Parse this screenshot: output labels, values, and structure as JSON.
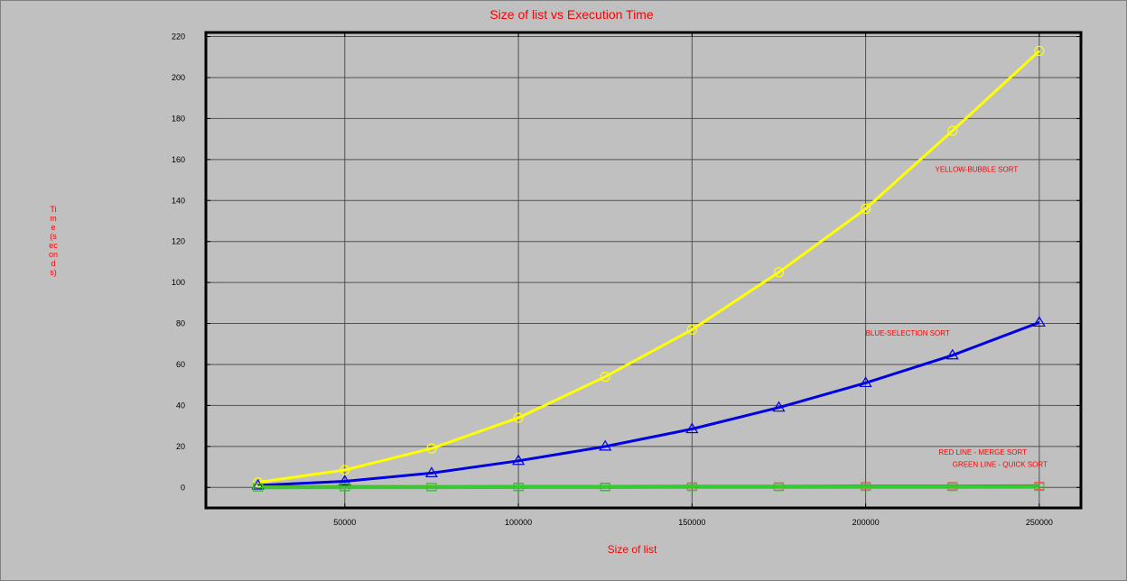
{
  "chart_data": {
    "type": "line",
    "title": "Size of list vs Execution Time",
    "xlabel": "Size of list",
    "ylabel": "Time(seconds)",
    "x": [
      25000,
      50000,
      75000,
      100000,
      125000,
      150000,
      175000,
      200000,
      225000,
      250000
    ],
    "xlim": [
      10000,
      262000
    ],
    "ylim": [
      -10,
      222
    ],
    "xticks": [
      50000,
      100000,
      150000,
      200000,
      250000
    ],
    "yticks": [
      0,
      20,
      40,
      60,
      80,
      100,
      120,
      140,
      160,
      180,
      200,
      220
    ],
    "grid": true,
    "series": [
      {
        "name": "YELLOW-BUBBLE SORT",
        "color": "#ffff00",
        "marker": "circle",
        "values": [
          2.5,
          8.5,
          19,
          34,
          54,
          77,
          105,
          136,
          174,
          213
        ]
      },
      {
        "name": "BLUE-SELECTION SORT",
        "color": "#0000e0",
        "marker": "triangle",
        "values": [
          1,
          3,
          7,
          13,
          20,
          28.5,
          39,
          51,
          64.5,
          80.5
        ]
      },
      {
        "name": "RED LINE - MERGE SORT",
        "color": "#ff3030",
        "marker": "square",
        "values": [
          0.1,
          0.2,
          0.2,
          0.3,
          0.3,
          0.4,
          0.4,
          0.5,
          0.5,
          0.6
        ]
      },
      {
        "name": "GREEN LINE - QUICK SORT",
        "color": "#33cc33",
        "marker": "square",
        "values": [
          0.05,
          0.1,
          0.1,
          0.15,
          0.15,
          0.2,
          0.2,
          0.25,
          0.25,
          0.3
        ]
      }
    ],
    "annotations": [
      {
        "text": "YELLOW-BUBBLE SORT",
        "x": 220000,
        "y": 154
      },
      {
        "text": "BLUE-SELECTION SORT",
        "x": 200000,
        "y": 74
      },
      {
        "text": "RED LINE - MERGE SORT",
        "x": 221000,
        "y": 16
      },
      {
        "text": "GREEN LINE - QUICK SORT",
        "x": 225000,
        "y": 10
      }
    ]
  }
}
